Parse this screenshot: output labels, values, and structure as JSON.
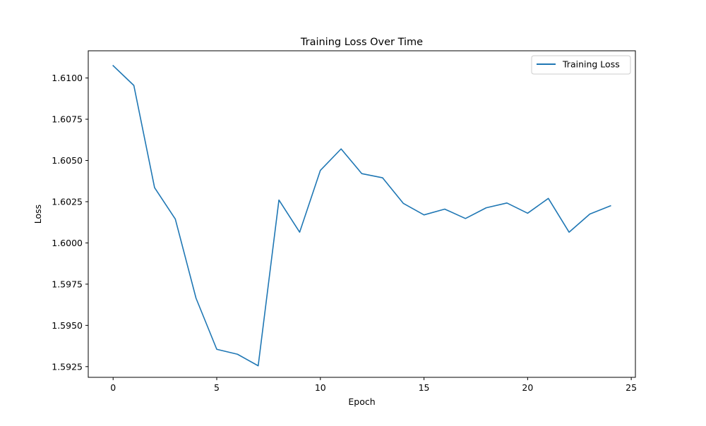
{
  "chart_data": {
    "type": "line",
    "title": "Training Loss Over Time",
    "xlabel": "Epoch",
    "ylabel": "Loss",
    "xlim": [
      -1.2,
      25.2
    ],
    "ylim": [
      1.59185,
      1.61165
    ],
    "xticks": [
      0,
      5,
      10,
      15,
      20,
      25
    ],
    "yticks": [
      1.5925,
      1.595,
      1.5975,
      1.6,
      1.6025,
      1.605,
      1.6075,
      1.61
    ],
    "xtick_labels": [
      "0",
      "5",
      "10",
      "15",
      "20",
      "25"
    ],
    "ytick_labels": [
      "1.5925",
      "1.5950",
      "1.5975",
      "1.6000",
      "1.6025",
      "1.6050",
      "1.6075",
      "1.6100"
    ],
    "grid": false,
    "legend_position": "top-right",
    "series": [
      {
        "name": "Training Loss",
        "color": "#1f77b4",
        "x": [
          0,
          1,
          2,
          3,
          4,
          5,
          6,
          7,
          8,
          9,
          10,
          11,
          12,
          13,
          14,
          15,
          16,
          17,
          18,
          19,
          20,
          21,
          22,
          23,
          24
        ],
        "y": [
          1.61075,
          1.60955,
          1.60335,
          1.60145,
          1.59665,
          1.59355,
          1.59325,
          1.59255,
          1.6026,
          1.60065,
          1.6044,
          1.6057,
          1.6042,
          1.60395,
          1.6024,
          1.6017,
          1.60205,
          1.60148,
          1.60213,
          1.60242,
          1.6018,
          1.6027,
          1.60065,
          1.60175,
          1.60225
        ]
      }
    ]
  }
}
